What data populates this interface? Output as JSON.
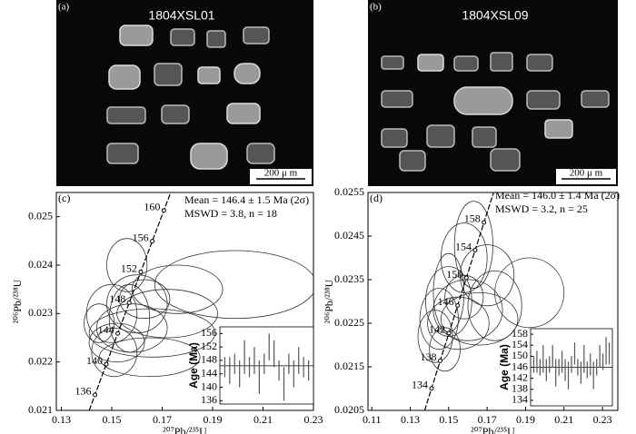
{
  "images": [
    {
      "label": "(a)",
      "title": "1804XSL01",
      "scale": "200 μ m"
    },
    {
      "label": "(b)",
      "title": "1804XSL09",
      "scale": "200 μ m"
    }
  ],
  "chart_data": [
    {
      "type": "concordia",
      "label": "(c)",
      "annotations": [
        "Mean = 146.4 ± 1.5 Ma (2σ)",
        "MSWD = 3.8, n = 18"
      ],
      "xlabel": "²⁰⁷Pb/²³⁵U",
      "ylabel": "²⁰⁶Pb/²³⁸U",
      "xlim": [
        0.128,
        0.23
      ],
      "xticks": [
        0.13,
        0.15,
        0.17,
        0.19,
        0.21,
        0.23
      ],
      "ylim": [
        0.021,
        0.0255
      ],
      "yticks": [
        0.021,
        0.022,
        0.023,
        0.024,
        0.025
      ],
      "concordia_ages": [
        136,
        140,
        144,
        148,
        152,
        156,
        160
      ],
      "ellipses": [
        {
          "x": 0.156,
          "y": 0.024,
          "ex": 0.008,
          "ey": 0.00055
        },
        {
          "x": 0.199,
          "y": 0.0236,
          "ex": 0.032,
          "ey": 0.0007
        },
        {
          "x": 0.176,
          "y": 0.0235,
          "ex": 0.018,
          "ey": 0.0005
        },
        {
          "x": 0.16,
          "y": 0.0232,
          "ex": 0.012,
          "ey": 0.0006
        },
        {
          "x": 0.172,
          "y": 0.023,
          "ex": 0.02,
          "ey": 0.0005
        },
        {
          "x": 0.15,
          "y": 0.023,
          "ex": 0.01,
          "ey": 0.0006
        },
        {
          "x": 0.158,
          "y": 0.0227,
          "ex": 0.014,
          "ey": 0.0005
        },
        {
          "x": 0.166,
          "y": 0.0226,
          "ex": 0.025,
          "ey": 0.0005
        },
        {
          "x": 0.152,
          "y": 0.0224,
          "ex": 0.011,
          "ey": 0.0004
        },
        {
          "x": 0.165,
          "y": 0.0221,
          "ex": 0.02,
          "ey": 0.0004
        },
        {
          "x": 0.151,
          "y": 0.0222,
          "ex": 0.009,
          "ey": 0.0005
        },
        {
          "x": 0.157,
          "y": 0.0229,
          "ex": 0.008,
          "ey": 0.0007
        },
        {
          "x": 0.163,
          "y": 0.0233,
          "ex": 0.01,
          "ey": 0.0004
        },
        {
          "x": 0.145,
          "y": 0.0228,
          "ex": 0.006,
          "ey": 0.0004
        }
      ],
      "inset": {
        "ylabel": "Age (Ma)",
        "ylim": [
          135,
          158
        ],
        "yticks": [
          136,
          140,
          144,
          148,
          152,
          156
        ],
        "mean": 146.4,
        "values": [
          146,
          145,
          147,
          144,
          149,
          146,
          148,
          143,
          147,
          152,
          150,
          145,
          141,
          147,
          144,
          148,
          146,
          145
        ],
        "errors": [
          3,
          4,
          3,
          4,
          5,
          3,
          4,
          5,
          3,
          4,
          4,
          3,
          5,
          3,
          4,
          4,
          3,
          3
        ]
      }
    },
    {
      "type": "concordia",
      "label": "(d)",
      "annotations": [
        "Mean = 146.0 ± 1.4 Ma (2σ)",
        "MSWD = 3.2, n = 25"
      ],
      "xlabel": "²⁰⁷Pb/²³⁵U",
      "ylabel": "²⁰⁶Pb/²³⁸U",
      "xlim": [
        0.108,
        0.238
      ],
      "xticks": [
        0.11,
        0.13,
        0.15,
        0.17,
        0.19,
        0.21,
        0.23
      ],
      "ylim": [
        0.0205,
        0.0255
      ],
      "yticks": [
        0.0205,
        0.0215,
        0.0225,
        0.0235,
        0.0245,
        0.0255
      ],
      "concordia_ages": [
        134,
        138,
        142,
        146,
        150,
        154,
        158
      ],
      "ellipses": [
        {
          "x": 0.158,
          "y": 0.024,
          "ex": 0.012,
          "ey": 0.0008
        },
        {
          "x": 0.163,
          "y": 0.0243,
          "ex": 0.01,
          "ey": 0.001
        },
        {
          "x": 0.192,
          "y": 0.0232,
          "ex": 0.018,
          "ey": 0.0008
        },
        {
          "x": 0.17,
          "y": 0.0236,
          "ex": 0.014,
          "ey": 0.0007
        },
        {
          "x": 0.15,
          "y": 0.023,
          "ex": 0.012,
          "ey": 0.0008
        },
        {
          "x": 0.16,
          "y": 0.0228,
          "ex": 0.018,
          "ey": 0.0007
        },
        {
          "x": 0.145,
          "y": 0.0226,
          "ex": 0.01,
          "ey": 0.0007
        },
        {
          "x": 0.155,
          "y": 0.0225,
          "ex": 0.016,
          "ey": 0.0006
        },
        {
          "x": 0.143,
          "y": 0.0222,
          "ex": 0.009,
          "ey": 0.0006
        },
        {
          "x": 0.166,
          "y": 0.0226,
          "ex": 0.02,
          "ey": 0.0006
        },
        {
          "x": 0.15,
          "y": 0.0232,
          "ex": 0.008,
          "ey": 0.0009
        },
        {
          "x": 0.158,
          "y": 0.0231,
          "ex": 0.01,
          "ey": 0.0005
        },
        {
          "x": 0.174,
          "y": 0.0229,
          "ex": 0.014,
          "ey": 0.0008
        },
        {
          "x": 0.148,
          "y": 0.0219,
          "ex": 0.008,
          "ey": 0.0005
        }
      ],
      "inset": {
        "ylabel": "Age (Ma)",
        "ylim": [
          132,
          160
        ],
        "yticks": [
          134,
          138,
          142,
          146,
          150,
          154,
          158
        ],
        "mean": 146.0,
        "values": [
          147,
          148,
          146,
          149,
          145,
          147,
          150,
          144,
          146,
          148,
          145,
          143,
          147,
          151,
          146,
          144,
          149,
          145,
          147,
          143,
          146,
          150,
          148,
          152,
          151
        ],
        "errors": [
          3,
          4,
          3,
          5,
          4,
          3,
          4,
          5,
          3,
          4,
          4,
          5,
          3,
          4,
          3,
          4,
          5,
          3,
          4,
          5,
          3,
          4,
          3,
          5,
          4
        ]
      }
    }
  ]
}
